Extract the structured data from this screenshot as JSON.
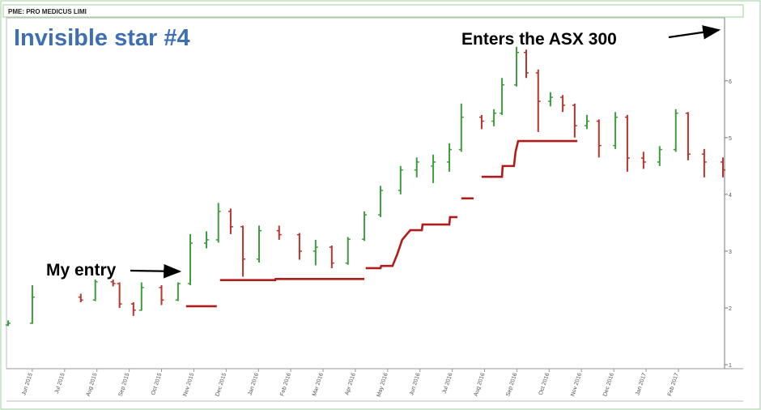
{
  "chart_data": {
    "type": "ohlc",
    "header": "PME: PRO MEDICUS LIMI",
    "title": "Invisible star #4",
    "annotations": [
      "My entry",
      "Enters the ASX 300"
    ],
    "up_color": "#3f9b3f",
    "down_color": "#b8342c",
    "x": [
      5.25,
      6.0,
      7.5,
      7.95,
      8.5,
      8.7,
      9.13,
      9.38,
      10.0,
      10.51,
      10.89,
      11.39,
      11.76,
      12.14,
      12.52,
      13.02,
      13.64,
      14.27,
      14.77,
      15.27,
      15.77,
      16.28,
      16.78,
      17.4,
      17.9,
      18.41,
      18.91,
      19.28,
      19.91,
      20.29,
      20.54,
      20.99,
      21.29,
      21.66,
      22.04,
      22.42,
      22.79,
      23.17,
      23.54,
      24.05,
      24.42,
      24.92,
      25.42,
      25.92,
      26.3,
      26.8,
      27.38
    ],
    "open": [
      1.7,
      1.73,
      2.19,
      2.14,
      2.46,
      2.43,
      2.07,
      1.96,
      2.36,
      2.14,
      2.43,
      3.14,
      3.2,
      3.7,
      3.43,
      2.86,
      3.36,
      3.29,
      3.0,
      3.07,
      2.79,
      3.21,
      3.64,
      4.07,
      4.43,
      4.5,
      4.57,
      4.79,
      5.36,
      5.29,
      5.43,
      5.93,
      6.5,
      6.14,
      5.64,
      5.71,
      5.57,
      5.21,
      5.29,
      4.86,
      5.36,
      4.64,
      4.57,
      4.79,
      5.43,
      4.71,
      4.57
    ],
    "high": [
      1.78,
      2.4,
      2.25,
      2.5,
      2.5,
      2.45,
      2.1,
      2.45,
      2.4,
      2.45,
      3.3,
      3.35,
      3.85,
      3.75,
      3.45,
      3.45,
      3.45,
      3.32,
      3.2,
      3.1,
      3.25,
      3.7,
      4.15,
      4.5,
      4.65,
      4.7,
      4.9,
      5.6,
      5.4,
      5.5,
      6.05,
      6.6,
      6.55,
      6.2,
      5.8,
      5.75,
      5.6,
      5.4,
      5.32,
      5.45,
      5.4,
      4.75,
      4.85,
      5.5,
      5.45,
      4.8,
      4.65
    ],
    "low": [
      1.68,
      1.72,
      2.1,
      2.12,
      2.38,
      2.0,
      1.86,
      1.95,
      2.05,
      2.12,
      2.4,
      3.05,
      3.15,
      3.3,
      2.55,
      2.8,
      3.2,
      2.85,
      2.75,
      2.7,
      2.76,
      3.18,
      3.6,
      4.0,
      4.3,
      4.2,
      4.4,
      4.75,
      5.15,
      5.2,
      5.4,
      5.9,
      6.05,
      5.1,
      5.55,
      5.45,
      5.0,
      5.15,
      4.65,
      4.8,
      4.4,
      4.45,
      4.5,
      4.75,
      4.6,
      4.3,
      4.3
    ],
    "close": [
      1.73,
      2.19,
      2.14,
      2.46,
      2.43,
      2.07,
      1.96,
      2.36,
      2.14,
      2.43,
      3.14,
      3.2,
      3.7,
      3.43,
      2.86,
      3.36,
      3.29,
      3.0,
      3.07,
      2.79,
      3.21,
      3.64,
      4.07,
      4.43,
      4.57,
      4.57,
      4.79,
      5.36,
      5.29,
      5.43,
      5.93,
      6.5,
      6.14,
      5.64,
      5.71,
      5.57,
      5.21,
      5.29,
      4.86,
      5.36,
      4.64,
      4.57,
      4.79,
      5.43,
      4.71,
      4.57,
      4.43
    ],
    "stop": {
      "color": "#b01c1c",
      "x": [
        10.76,
        11.71,
        11.74,
        11.76,
        11.79,
        11.81,
        13.52,
        13.53,
        16.28,
        16.3,
        16.32,
        16.78,
        16.8,
        17.15,
        17.3,
        17.45,
        17.7,
        18.06,
        18.08,
        18.91,
        18.93,
        19.16,
        19.18,
        19.28,
        19.66,
        19.68,
        19.91,
        20.54,
        20.56,
        20.91,
        20.96,
        21.04,
        22.87
      ],
      "values": [
        2.03,
        2.03,
        null,
        2.33,
        null,
        2.49,
        2.49,
        2.51,
        2.51,
        null,
        2.7,
        2.7,
        2.74,
        2.74,
        2.95,
        3.2,
        3.37,
        3.37,
        3.47,
        3.47,
        3.6,
        3.6,
        null,
        3.93,
        3.93,
        null,
        4.31,
        4.31,
        4.5,
        4.5,
        4.75,
        4.94,
        4.94
      ]
    },
    "xlim": [
      5.2,
      27.43
    ],
    "ylim": [
      0.93,
      7.11
    ],
    "yticks": [
      1,
      2,
      3,
      4,
      5,
      6
    ],
    "xticks": [
      {
        "value": 6,
        "label": "Jun 2015"
      },
      {
        "value": 7,
        "label": "Jul 2015"
      },
      {
        "value": 8,
        "label": "Aug 2015"
      },
      {
        "value": 9,
        "label": "Sep 2015"
      },
      {
        "value": 10,
        "label": "Oct 2015"
      },
      {
        "value": 11,
        "label": "Nov 2015"
      },
      {
        "value": 12,
        "label": "Dec 2015"
      },
      {
        "value": 13,
        "label": "Jan 2016"
      },
      {
        "value": 14,
        "label": "Feb 2016"
      },
      {
        "value": 15,
        "label": "Mar 2016"
      },
      {
        "value": 16,
        "label": "Apr 2016"
      },
      {
        "value": 17,
        "label": "May 2016"
      },
      {
        "value": 18,
        "label": "Jun 2016"
      },
      {
        "value": 19,
        "label": "Jul 2016"
      },
      {
        "value": 20,
        "label": "Aug 2016"
      },
      {
        "value": 21,
        "label": "Sep 2016"
      },
      {
        "value": 22,
        "label": "Oct 2016"
      },
      {
        "value": 23,
        "label": "Nov 2016"
      },
      {
        "value": 24,
        "label": "Dec 2016"
      },
      {
        "value": 25,
        "label": "Jan 2017"
      },
      {
        "value": 26,
        "label": "Feb 2017"
      }
    ]
  }
}
